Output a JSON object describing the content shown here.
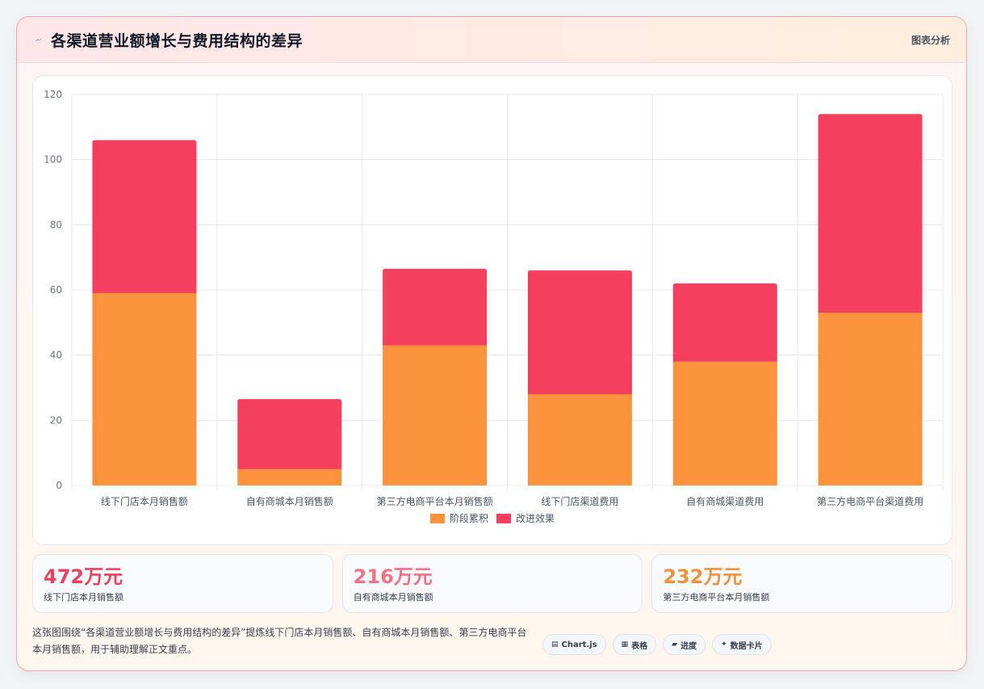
{
  "header": {
    "title": "各渠道营业额增长与费用结构的差异",
    "action_label": "图表分析",
    "icon": "lightning-icon"
  },
  "chart_data": {
    "type": "bar",
    "stacked": true,
    "title": "",
    "xlabel": "",
    "ylabel": "",
    "ylim": [
      0,
      120
    ],
    "yticks": [
      0,
      20,
      40,
      60,
      80,
      100,
      120
    ],
    "grid": true,
    "legend_position": "bottom",
    "categories": [
      "线下门店本月销售额",
      "自有商城本月销售额",
      "第三方电商平台本月销售额",
      "线下门店渠道费用",
      "自有商城渠道费用",
      "第三方电商平台渠道费用"
    ],
    "series": [
      {
        "name": "阶段累积",
        "color": "#fb923c",
        "values": [
          59,
          5,
          43,
          28,
          38,
          53
        ]
      },
      {
        "name": "改进效果",
        "color": "#f43f5e",
        "values": [
          47,
          21.5,
          23.5,
          38,
          24,
          61
        ]
      }
    ]
  },
  "stats": [
    {
      "value": "472万元",
      "label": "线下门店本月销售额",
      "color": "#e8435e"
    },
    {
      "value": "216万元",
      "label": "自有商城本月销售额",
      "color": "#f07186"
    },
    {
      "value": "232万元",
      "label": "第三方电商平台本月销售额",
      "color": "#f0913e"
    }
  ],
  "footer": {
    "description": "这张图围绕“各渠道营业额增长与费用结构的差异”提炼线下门店本月销售额、自有商城本月销售额、第三方电商平台本月销售额，用于辅助理解正文重点。"
  },
  "tags": [
    {
      "icon": "▤",
      "icon_name": "chart-icon",
      "label": "Chart.js"
    },
    {
      "icon": "▦",
      "icon_name": "table-icon",
      "label": "表格"
    },
    {
      "icon": "▰",
      "icon_name": "progress-icon",
      "label": "进度"
    },
    {
      "icon": "✦",
      "icon_name": "sparkle-icon",
      "label": "数据卡片"
    }
  ]
}
